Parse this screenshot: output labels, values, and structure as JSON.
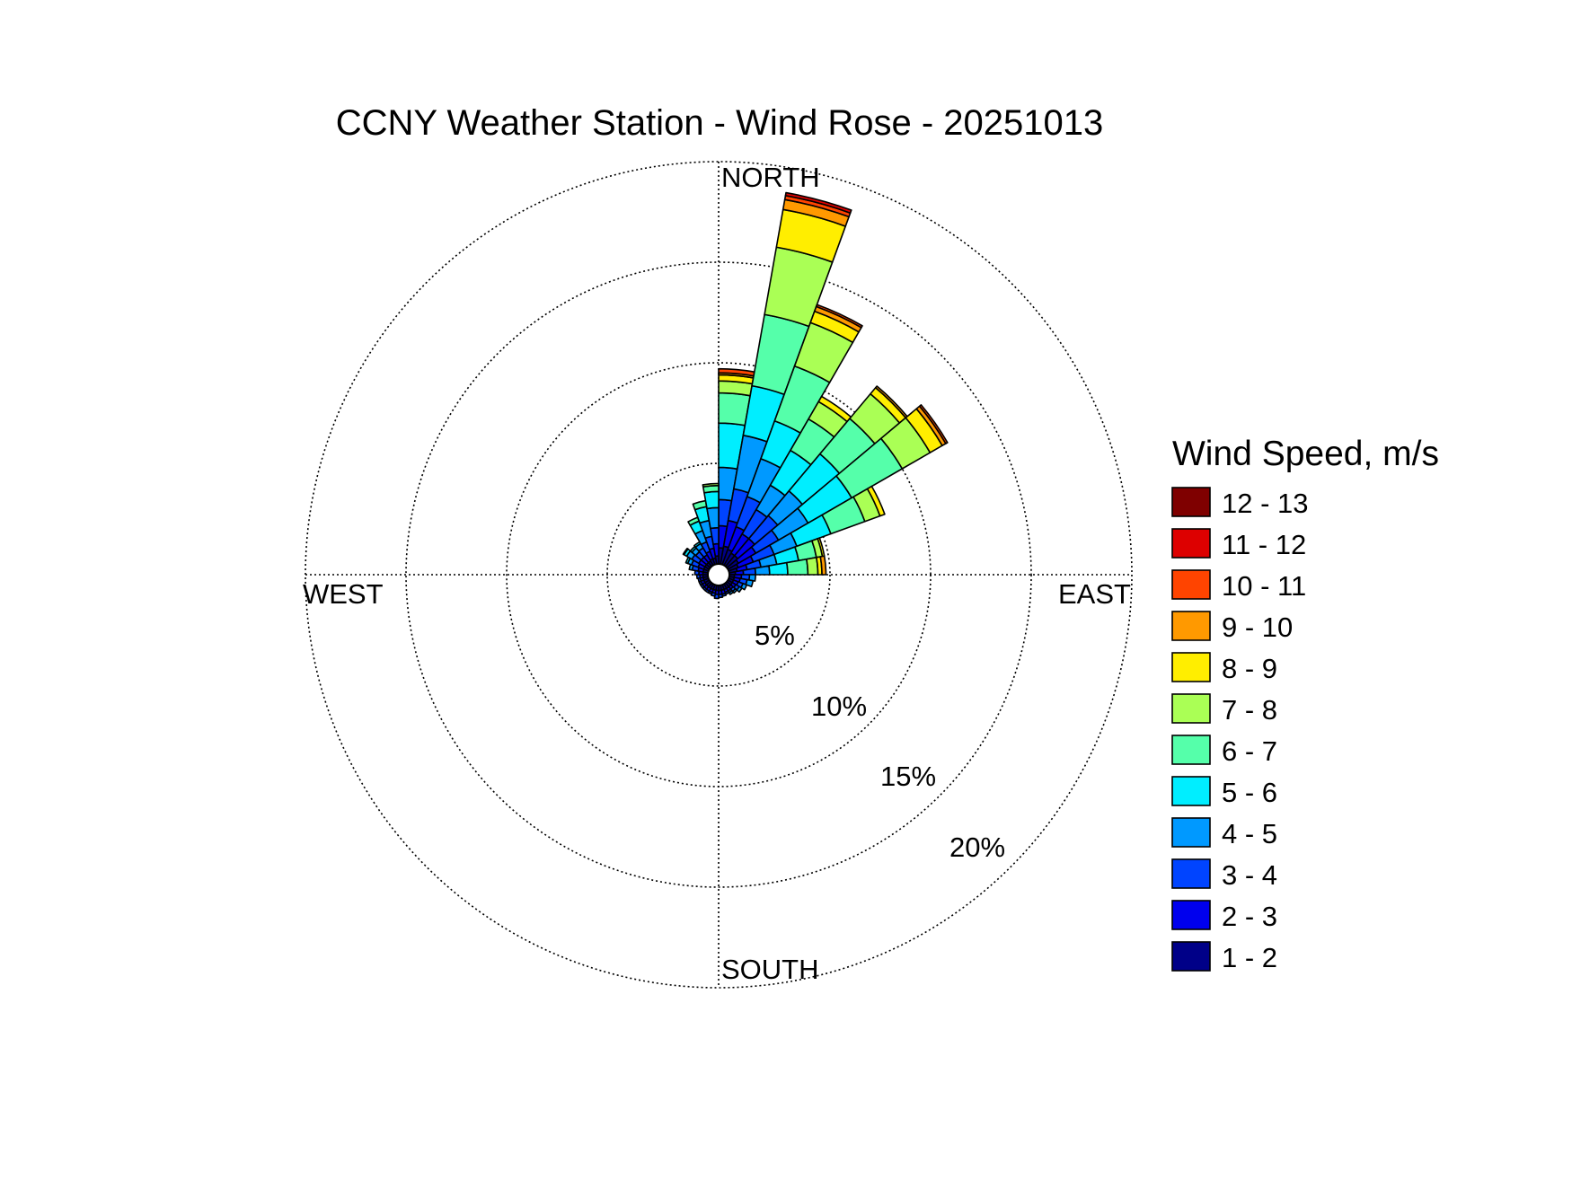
{
  "chart_data": {
    "type": "wind-rose",
    "title": "CCNY Weather Station - Wind Rose - 20251013",
    "direction_labels": {
      "north": "NORTH",
      "east": "EAST",
      "south": "SOUTH",
      "west": "WEST"
    },
    "radial_axis": {
      "max": 20,
      "ticks": [
        5,
        10,
        15,
        20
      ],
      "tick_labels": [
        "5%",
        "10%",
        "15%",
        "20%"
      ],
      "unit": "% frequency",
      "grid": true
    },
    "legend": {
      "title": "Wind Speed, m/s",
      "placement": "right",
      "bins": [
        {
          "label": "12 - 13",
          "color": "#7f0000"
        },
        {
          "label": "11 - 12",
          "color": "#dd0000"
        },
        {
          "label": "10 - 11",
          "color": "#ff4400"
        },
        {
          "label": "9 - 10",
          "color": "#ff9900"
        },
        {
          "label": "8 - 9",
          "color": "#ffee00"
        },
        {
          "label": "7 - 8",
          "color": "#aaff55"
        },
        {
          "label": "6 - 7",
          "color": "#55ffaa"
        },
        {
          "label": "5 - 6",
          "color": "#00eeff"
        },
        {
          "label": "4 - 5",
          "color": "#0099ff"
        },
        {
          "label": "3 - 4",
          "color": "#0044ff"
        },
        {
          "label": "2 - 3",
          "color": "#0000ee"
        },
        {
          "label": "1 - 2",
          "color": "#000088"
        }
      ]
    },
    "sector_width_deg": 10,
    "sectors": [
      {
        "direction_deg": 5,
        "cumulative_pct": [
          0.8,
          1.9,
          3.2,
          4.8,
          7.0,
          8.5,
          9.1,
          9.4,
          9.5,
          9.7
        ]
      },
      {
        "direction_deg": 15,
        "cumulative_pct": [
          0.9,
          2.2,
          3.8,
          6.5,
          9.0,
          12.6,
          16.0,
          17.9,
          18.4,
          18.6,
          18.75
        ]
      },
      {
        "direction_deg": 25,
        "cumulative_pct": [
          0.8,
          2.0,
          3.6,
          5.6,
          7.6,
          10.5,
          12.8,
          13.4,
          13.65,
          13.75
        ]
      },
      {
        "direction_deg": 35,
        "cumulative_pct": [
          0.7,
          1.8,
          3.2,
          4.6,
          6.6,
          8.4,
          9.4,
          9.7
        ]
      },
      {
        "direction_deg": 45,
        "cumulative_pct": [
          0.7,
          1.8,
          3.3,
          4.9,
          7.3,
          9.6,
          11.2,
          11.6,
          11.7
        ]
      },
      {
        "direction_deg": 55,
        "cumulative_pct": [
          0.6,
          1.6,
          2.9,
          4.6,
          7.1,
          10.0,
          11.6,
          12.3,
          12.5,
          12.6
        ]
      },
      {
        "direction_deg": 65,
        "cumulative_pct": [
          0.5,
          1.3,
          2.4,
          3.6,
          5.4,
          7.2,
          8.0,
          8.25
        ]
      },
      {
        "direction_deg": 75,
        "cumulative_pct": [
          0.4,
          0.9,
          1.6,
          2.4,
          3.5,
          4.4,
          4.7,
          4.8
        ]
      },
      {
        "direction_deg": 85,
        "cumulative_pct": [
          0.3,
          0.7,
          1.3,
          2.0,
          2.9,
          3.9,
          4.4,
          4.6,
          4.8
        ]
      },
      {
        "direction_deg": 95,
        "cumulative_pct": [
          0.25,
          0.6,
          1.0,
          1.3
        ]
      },
      {
        "direction_deg": 105,
        "cumulative_pct": [
          0.25,
          0.55,
          0.9,
          1.2
        ]
      },
      {
        "direction_deg": 115,
        "cumulative_pct": [
          0.25,
          0.5,
          0.75,
          0.95
        ]
      },
      {
        "direction_deg": 125,
        "cumulative_pct": [
          0.25,
          0.45,
          0.65,
          0.8
        ]
      },
      {
        "direction_deg": 135,
        "cumulative_pct": [
          0.25,
          0.4,
          0.55,
          0.65
        ]
      },
      {
        "direction_deg": 145,
        "cumulative_pct": [
          0.25,
          0.4,
          0.5,
          0.6
        ]
      },
      {
        "direction_deg": 155,
        "cumulative_pct": [
          0.25,
          0.4,
          0.5
        ]
      },
      {
        "direction_deg": 165,
        "cumulative_pct": [
          0.25,
          0.45,
          0.55
        ]
      },
      {
        "direction_deg": 175,
        "cumulative_pct": [
          0.25,
          0.45,
          0.6
        ]
      },
      {
        "direction_deg": 185,
        "cumulative_pct": [
          0.25,
          0.45,
          0.65
        ]
      },
      {
        "direction_deg": 195,
        "cumulative_pct": [
          0.25,
          0.4,
          0.55
        ]
      },
      {
        "direction_deg": 205,
        "cumulative_pct": [
          0.25,
          0.4,
          0.5
        ]
      },
      {
        "direction_deg": 215,
        "cumulative_pct": [
          0.25,
          0.4,
          0.5
        ]
      },
      {
        "direction_deg": 225,
        "cumulative_pct": [
          0.25,
          0.4,
          0.5
        ]
      },
      {
        "direction_deg": 235,
        "cumulative_pct": [
          0.25,
          0.4,
          0.5
        ]
      },
      {
        "direction_deg": 245,
        "cumulative_pct": [
          0.25,
          0.4,
          0.5
        ]
      },
      {
        "direction_deg": 255,
        "cumulative_pct": [
          0.25,
          0.4,
          0.5
        ]
      },
      {
        "direction_deg": 265,
        "cumulative_pct": [
          0.25,
          0.4,
          0.55
        ]
      },
      {
        "direction_deg": 275,
        "cumulative_pct": [
          0.25,
          0.45,
          0.65
        ]
      },
      {
        "direction_deg": 285,
        "cumulative_pct": [
          0.25,
          0.5,
          0.8,
          0.95
        ]
      },
      {
        "direction_deg": 295,
        "cumulative_pct": [
          0.25,
          0.55,
          0.9,
          1.1,
          1.2
        ]
      },
      {
        "direction_deg": 305,
        "cumulative_pct": [
          0.25,
          0.6,
          1.0,
          1.3,
          1.45,
          1.5
        ]
      },
      {
        "direction_deg": 315,
        "cumulative_pct": [
          0.25,
          0.6,
          0.95,
          1.2,
          1.3
        ]
      },
      {
        "direction_deg": 325,
        "cumulative_pct": [
          0.25,
          0.6,
          1.0,
          1.25,
          1.35
        ]
      },
      {
        "direction_deg": 335,
        "cumulative_pct": [
          0.3,
          0.7,
          1.2,
          1.8,
          2.3,
          2.5
        ]
      },
      {
        "direction_deg": 345,
        "cumulative_pct": [
          0.3,
          0.8,
          1.4,
          2.2,
          2.9,
          3.2
        ]
      },
      {
        "direction_deg": 355,
        "cumulative_pct": [
          0.4,
          1.0,
          1.8,
          2.8,
          3.6,
          3.9,
          4.0
        ]
      }
    ]
  }
}
